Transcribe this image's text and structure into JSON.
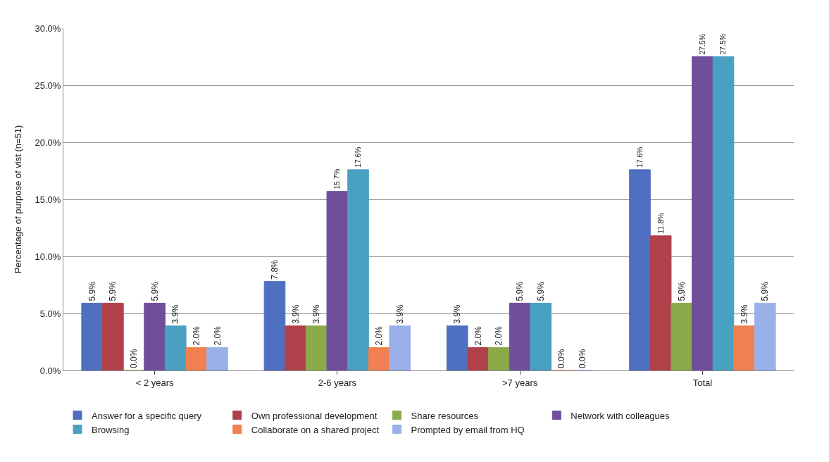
{
  "chart_data": {
    "type": "bar",
    "ylabel": "Percentage of purpose of vist (n=51)",
    "categories": [
      "< 2 years",
      "2-6 years",
      ">7 years",
      "Total"
    ],
    "series": [
      {
        "name": "Answer for a specific query",
        "color": "#4f6fc0",
        "values": [
          5.9,
          7.8,
          3.9,
          17.6
        ],
        "value_labels": [
          "5.9%",
          "7.8%",
          "3.9%",
          "17.6%"
        ]
      },
      {
        "name": "Own professional development",
        "color": "#b0404a",
        "values": [
          5.9,
          3.9,
          2.0,
          11.8
        ],
        "value_labels": [
          "5.9%",
          "3.9%",
          "2.0%",
          "11.8%"
        ]
      },
      {
        "name": "Share resources",
        "color": "#8aab4a",
        "values": [
          0.0,
          3.9,
          2.0,
          5.9
        ],
        "value_labels": [
          "0.0%",
          "3.9%",
          "2.0%",
          "5.9%"
        ]
      },
      {
        "name": "Network with colleagues",
        "color": "#6f4f9a",
        "values": [
          5.9,
          15.7,
          5.9,
          27.5
        ],
        "value_labels": [
          "5.9%",
          "15.7%",
          "5.9%",
          "27.5%"
        ]
      },
      {
        "name": "Browsing",
        "color": "#4aa0c0",
        "values": [
          3.9,
          17.6,
          5.9,
          27.5
        ],
        "value_labels": [
          "3.9%",
          "17.6%",
          "5.9%",
          "27.5%"
        ]
      },
      {
        "name": "Collaborate on a shared project",
        "color": "#f08050",
        "values": [
          2.0,
          2.0,
          0.0,
          3.9
        ],
        "value_labels": [
          "2.0%",
          "2.0%",
          "0.0%",
          "3.9%"
        ]
      },
      {
        "name": "Prompted by email from HQ",
        "color": "#9ab0e8",
        "values": [
          2.0,
          3.9,
          0.0,
          5.9
        ],
        "value_labels": [
          "2.0%",
          "3.9%",
          "0.0%",
          "5.9%"
        ]
      }
    ],
    "ylim": [
      0,
      30
    ],
    "yticks": [
      {
        "value": 0,
        "label": "0.0%"
      },
      {
        "value": 5,
        "label": "5.0%"
      },
      {
        "value": 10,
        "label": "10.0%"
      },
      {
        "value": 15,
        "label": "15.0%"
      },
      {
        "value": 20,
        "label": "20.0%"
      },
      {
        "value": 25,
        "label": "25.0%"
      },
      {
        "value": 30,
        "label": "30.0%"
      }
    ],
    "grid": "y",
    "legend": "bottom"
  }
}
